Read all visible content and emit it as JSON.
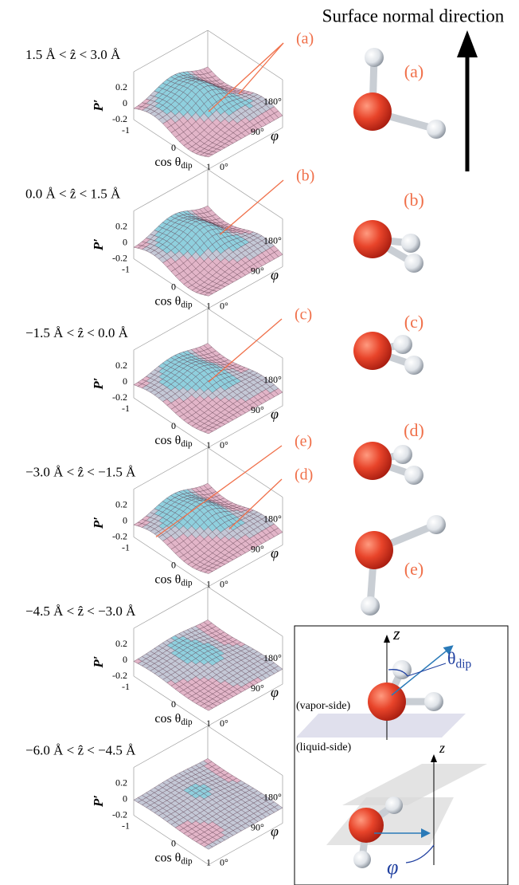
{
  "header": {
    "title": "Surface normal direction"
  },
  "panels": [
    {
      "range": "1.5 Å < ẑ < 3.0 Å",
      "z_label": "P′",
      "zticks": [
        "0.2",
        "0",
        "-0.2"
      ],
      "x_label": "cos θ",
      "x_label_sub": "dip",
      "xticks": [
        "-1",
        "0",
        "1"
      ],
      "y_label": "φ",
      "yticks": [
        "0°",
        "90°",
        "180°"
      ],
      "callouts": [
        "(a)"
      ]
    },
    {
      "range": "0.0 Å < ẑ < 1.5 Å",
      "z_label": "P′",
      "zticks": [
        "0.2",
        "0",
        "-0.2"
      ],
      "x_label": "cos θ",
      "x_label_sub": "dip",
      "xticks": [
        "-1",
        "0",
        "1"
      ],
      "y_label": "φ",
      "yticks": [
        "0°",
        "90°",
        "180°"
      ],
      "callouts": [
        "(b)"
      ]
    },
    {
      "range": "−1.5 Å < ẑ < 0.0 Å",
      "z_label": "P′",
      "zticks": [
        "0.2",
        "0",
        "-0.2"
      ],
      "x_label": "cos θ",
      "x_label_sub": "dip",
      "xticks": [
        "-1",
        "0",
        "1"
      ],
      "y_label": "φ",
      "yticks": [
        "0°",
        "90°",
        "180°"
      ],
      "callouts": [
        "(c)"
      ]
    },
    {
      "range": "−3.0 Å < ẑ < −1.5 Å",
      "z_label": "P′",
      "zticks": [
        "0.2",
        "0",
        "-0.2"
      ],
      "x_label": "cos θ",
      "x_label_sub": "dip",
      "xticks": [
        "-1",
        "0",
        "1"
      ],
      "y_label": "φ",
      "yticks": [
        "0°",
        "90°",
        "180°"
      ],
      "callouts": [
        "(e)",
        "(d)"
      ]
    },
    {
      "range": "−4.5 Å < ẑ < −3.0 Å",
      "z_label": "P′",
      "zticks": [
        "0.2",
        "0",
        "-0.2"
      ],
      "x_label": "cos θ",
      "x_label_sub": "dip",
      "xticks": [
        "-1",
        "0",
        "1"
      ],
      "y_label": "φ",
      "yticks": [
        "0°",
        "90°",
        "180°"
      ],
      "callouts": []
    },
    {
      "range": "−6.0 Å < ẑ < −4.5 Å",
      "z_label": "P′",
      "zticks": [
        "0.2",
        "0",
        "-0.2"
      ],
      "x_label": "cos θ",
      "x_label_sub": "dip",
      "xticks": [
        "-1",
        "0",
        "1"
      ],
      "y_label": "φ",
      "yticks": [
        "0°",
        "90°",
        "180°"
      ],
      "callouts": []
    }
  ],
  "molecules": [
    "(a)",
    "(b)",
    "(c)",
    "(d)",
    "(e)"
  ],
  "inset": {
    "z_label": "z",
    "theta_label": "θ",
    "theta_sub": "dip",
    "vapor": "(vapor-side)",
    "liquid": "(liquid-side)",
    "z2_label": "z",
    "phi_label": "φ"
  }
}
